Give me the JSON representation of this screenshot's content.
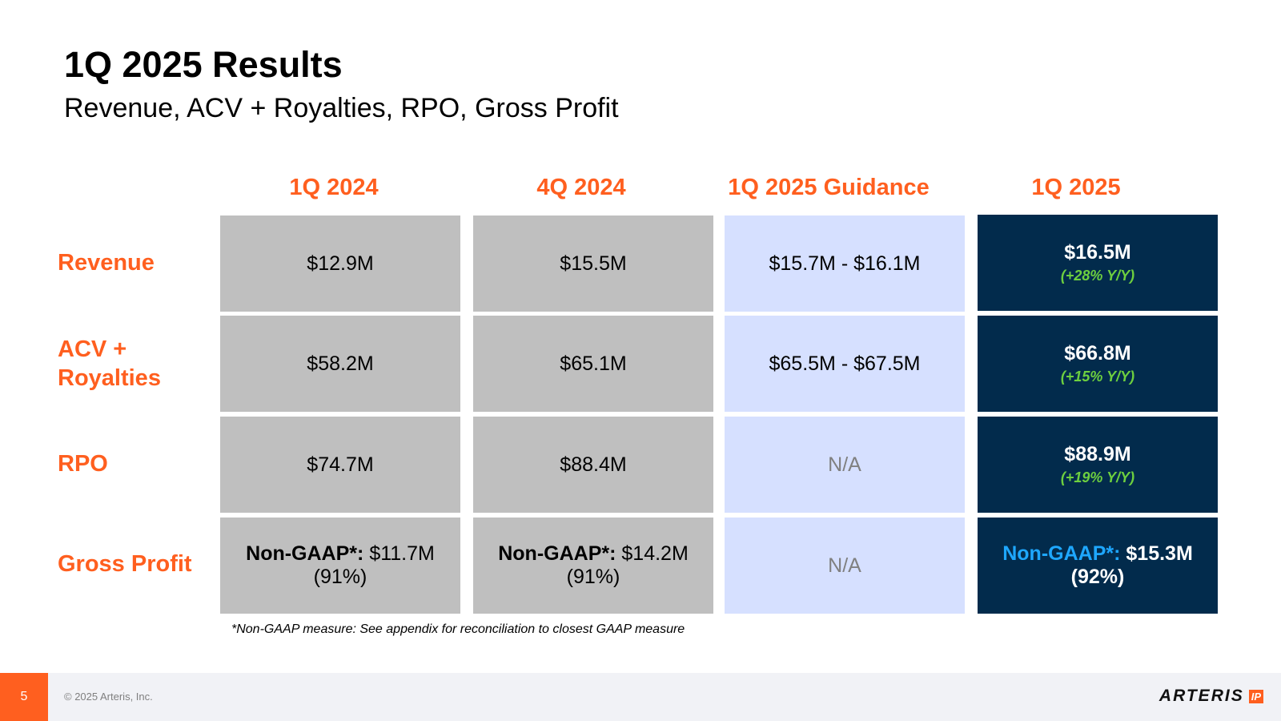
{
  "title": "1Q 2025 Results",
  "subtitle": "Revenue, ACV + Royalties, RPO, Gross Profit",
  "columns": [
    "1Q 2024",
    "4Q 2024",
    "1Q 2025 Guidance",
    "1Q 2025"
  ],
  "rows": {
    "revenue": {
      "label": "Revenue",
      "q1_2024": "$12.9M",
      "q4_2024": "$15.5M",
      "guidance": "$15.7M - $16.1M",
      "q1_2025": "$16.5M",
      "q1_2025_growth": "(+28% Y/Y)"
    },
    "acv": {
      "label_line1": "ACV +",
      "label_line2": "Royalties",
      "q1_2024": "$58.2M",
      "q4_2024": "$65.1M",
      "guidance": "$65.5M - $67.5M",
      "q1_2025": "$66.8M",
      "q1_2025_growth": "(+15% Y/Y)"
    },
    "rpo": {
      "label": "RPO",
      "q1_2024": "$74.7M",
      "q4_2024": "$88.4M",
      "guidance": "N/A",
      "q1_2025": "$88.9M",
      "q1_2025_growth": "(+19% Y/Y)"
    },
    "gross_profit": {
      "label": "Gross Profit",
      "prefix": "Non-GAAP*:",
      "q1_2024_value": "$11.7M",
      "q1_2024_pct": "(91%)",
      "q4_2024_value": "$14.2M",
      "q4_2024_pct": "(91%)",
      "guidance": "N/A",
      "q1_2025_value": "$15.3M",
      "q1_2025_pct": "(92%)"
    }
  },
  "footnote": "*Non-GAAP measure: See appendix for reconciliation to closest GAAP measure",
  "footer": {
    "page_number": "5",
    "copyright": "© 2025 Arteris, Inc.",
    "logo_word": "ARTERIS",
    "logo_badge": "IP"
  },
  "colors": {
    "accent_orange": "#ff5f1f",
    "dark_navy": "#022b4c",
    "guidance_blue": "#d6e0ff",
    "history_gray": "#bfbfbf",
    "growth_green": "#6dcf3f",
    "nongaap_blue": "#1ea7ff"
  }
}
